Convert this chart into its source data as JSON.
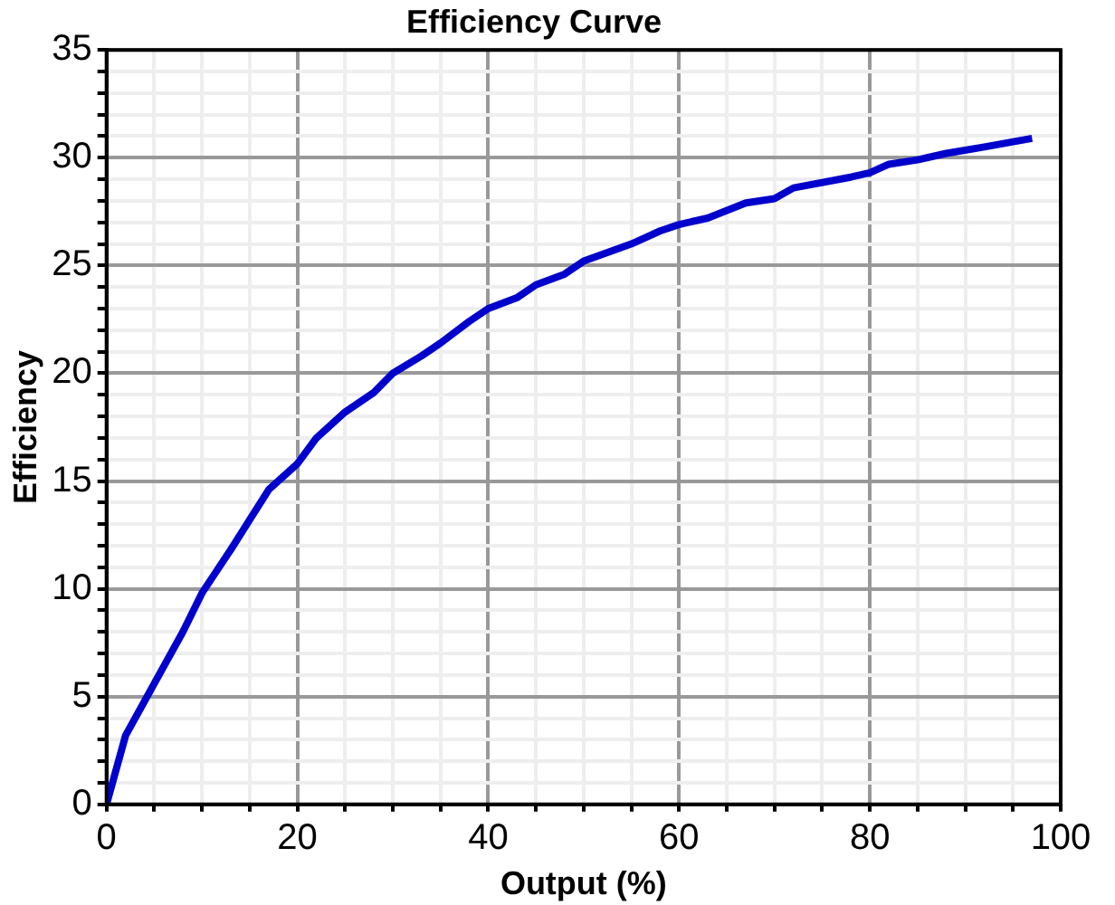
{
  "chart_data": {
    "type": "line",
    "title": "Efficiency Curve",
    "xlabel": "Output (%)",
    "ylabel": "Efficiency",
    "x": [
      0,
      2,
      5,
      8,
      10,
      13,
      15,
      17,
      20,
      22,
      25,
      28,
      30,
      33,
      35,
      38,
      40,
      43,
      45,
      48,
      50,
      55,
      58,
      60,
      63,
      67,
      70,
      72,
      78,
      80,
      82,
      85,
      88,
      92,
      97
    ],
    "series": [
      {
        "color": "#0000cc",
        "values": [
          0,
          3.2,
          5.6,
          8,
          9.8,
          11.8,
          13.2,
          14.6,
          15.8,
          17,
          18.2,
          19.1,
          20,
          20.8,
          21.4,
          22.4,
          23,
          23.5,
          24.1,
          24.6,
          25.2,
          26,
          26.6,
          26.9,
          27.2,
          27.9,
          28.1,
          28.6,
          29.1,
          29.3,
          29.7,
          29.9,
          30.2,
          30.5,
          30.9
        ]
      }
    ],
    "xlim": [
      0,
      100
    ],
    "xticks": [
      0,
      {
        "value": 5,
        "label": null
      },
      {
        "value": 10,
        "label": null
      },
      {
        "value": 15,
        "label": null
      },
      20,
      {
        "value": 25,
        "label": null
      },
      {
        "value": 30,
        "label": null
      },
      {
        "value": 35,
        "label": null
      },
      40,
      {
        "value": 45,
        "label": null
      },
      {
        "value": 50,
        "label": null
      },
      {
        "value": 55,
        "label": null
      },
      60,
      {
        "value": 65,
        "label": null
      },
      {
        "value": 70,
        "label": null
      },
      {
        "value": 75,
        "label": null
      },
      80,
      {
        "value": 85,
        "label": null
      },
      {
        "value": 90,
        "label": null
      },
      {
        "value": 95,
        "label": null
      },
      100
    ],
    "ylim": [
      0,
      35
    ],
    "yticks": [
      0,
      {
        "value": 1,
        "label": null
      },
      {
        "value": 2,
        "label": null
      },
      {
        "value": 3,
        "label": null
      },
      {
        "value": 4,
        "label": null
      },
      5,
      {
        "value": 6,
        "label": null
      },
      {
        "value": 7,
        "label": null
      },
      {
        "value": 8,
        "label": null
      },
      {
        "value": 9,
        "label": null
      },
      10,
      {
        "value": 11,
        "label": null
      },
      {
        "value": 12,
        "label": null
      },
      {
        "value": 13,
        "label": null
      },
      {
        "value": 14,
        "label": null
      },
      15,
      {
        "value": 16,
        "label": null
      },
      {
        "value": 17,
        "label": null
      },
      {
        "value": 18,
        "label": null
      },
      {
        "value": 19,
        "label": null
      },
      20,
      {
        "value": 21,
        "label": null
      },
      {
        "value": 22,
        "label": null
      },
      {
        "value": 23,
        "label": null
      },
      {
        "value": 24,
        "label": null
      },
      25,
      {
        "value": 26,
        "label": null
      },
      {
        "value": 27,
        "label": null
      },
      {
        "value": 28,
        "label": null
      },
      {
        "value": 29,
        "label": null
      },
      30,
      {
        "value": 31,
        "label": null
      },
      {
        "value": 32,
        "label": null
      },
      {
        "value": 33,
        "label": null
      },
      {
        "value": 34,
        "label": null
      },
      35
    ],
    "grid": true,
    "legend": false,
    "marker": "none",
    "line_style": "solid"
  }
}
